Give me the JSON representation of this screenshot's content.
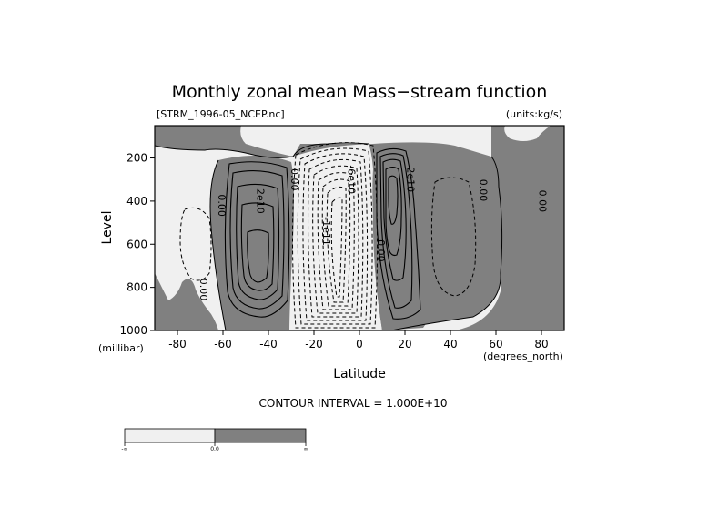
{
  "chart_data": {
    "type": "contour",
    "title": "Monthly zonal mean Mass−stream function",
    "file_label": "[STRM_1996-05_NCEP.nc]",
    "units_label": "(units:kg/s)",
    "xlabel": "Latitude",
    "ylabel": "Level",
    "x_unit": "(degrees_north)",
    "y_unit": "(millibar)",
    "xlim": [
      -90,
      90
    ],
    "ylim": [
      1000,
      50
    ],
    "y_inverted": true,
    "x_ticks": [
      {
        "value": -80,
        "label": "-80"
      },
      {
        "value": -60,
        "label": "-60"
      },
      {
        "value": -40,
        "label": "-40"
      },
      {
        "value": -20,
        "label": "-20"
      },
      {
        "value": 0,
        "label": "0"
      },
      {
        "value": 20,
        "label": "20"
      },
      {
        "value": 40,
        "label": "40"
      },
      {
        "value": 60,
        "label": "60"
      },
      {
        "value": 80,
        "label": "80"
      }
    ],
    "y_ticks": [
      {
        "value": 200,
        "label": "200"
      },
      {
        "value": 400,
        "label": "400"
      },
      {
        "value": 600,
        "label": "600"
      },
      {
        "value": 800,
        "label": "800"
      },
      {
        "value": 1000,
        "label": "1000"
      }
    ],
    "contour_interval_text": "CONTOUR INTERVAL = 1.000E+10",
    "contour_interval": 10000000000,
    "shading": {
      "negative_color": "#f0f0f0",
      "positive_color": "#808080",
      "threshold": 0
    },
    "contour_labels": [
      {
        "text": "2e10",
        "x": -45,
        "y": 400
      },
      {
        "text": "-1e11",
        "x": -16,
        "y": 540
      },
      {
        "text": "-6e10",
        "x": -5,
        "y": 300
      },
      {
        "text": "2e10",
        "x": 21,
        "y": 300
      },
      {
        "text": "0.00",
        "x": -62,
        "y": 420
      },
      {
        "text": "0.00",
        "x": -30,
        "y": 300
      },
      {
        "text": "0.00",
        "x": 53,
        "y": 350
      },
      {
        "text": "0.00",
        "x": 79,
        "y": 400
      },
      {
        "text": "0.00",
        "x": 8,
        "y": 630
      },
      {
        "text": "0.00",
        "x": -70,
        "y": 810
      }
    ],
    "colorbar": {
      "segments": [
        {
          "color": "#f0f0f0",
          "range": "negative"
        },
        {
          "color": "#808080",
          "range": "positive"
        }
      ],
      "labels": [
        "-∞",
        "0.0",
        "∞"
      ]
    }
  }
}
